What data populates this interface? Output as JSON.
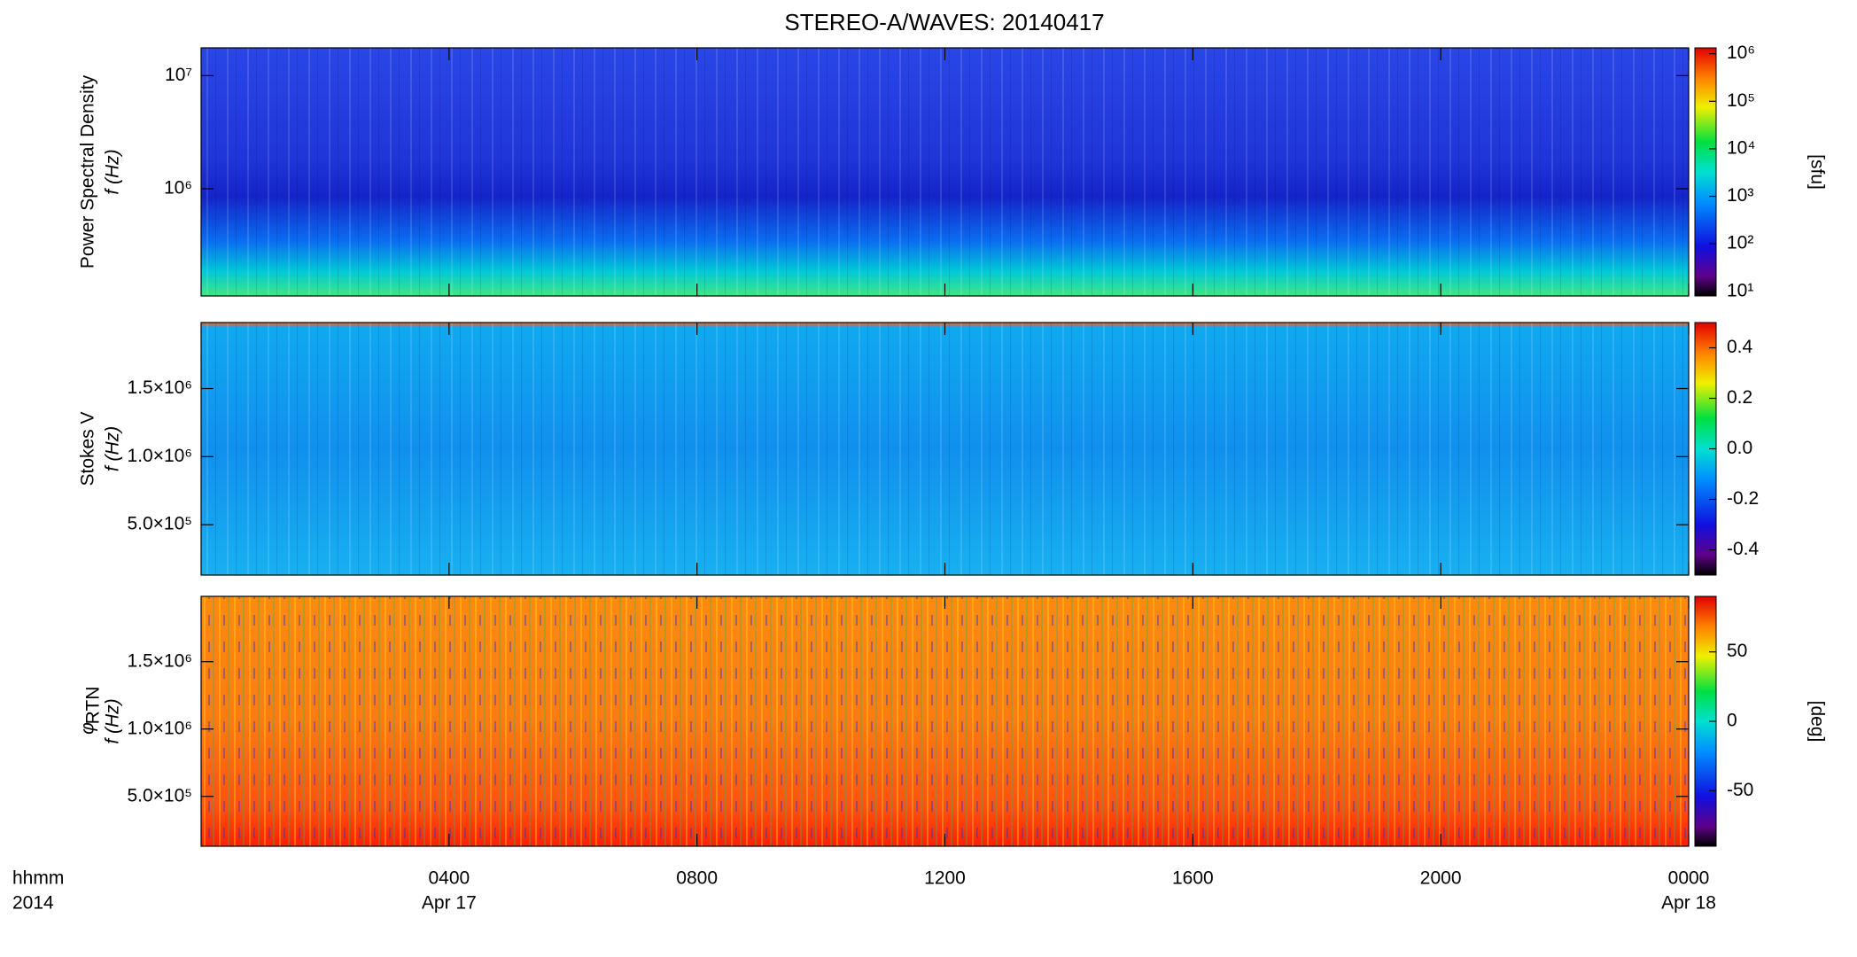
{
  "chart_data": {
    "type": "spectrogram-stack",
    "title": "STEREO-A/WAVES: 20140417",
    "xlabel": [
      "hhmm",
      "2014"
    ],
    "xlim": [
      0,
      24
    ],
    "xticks": [
      {
        "value": 4,
        "label": "0400"
      },
      {
        "value": 8,
        "label": "0800"
      },
      {
        "value": 12,
        "label": "1200"
      },
      {
        "value": 16,
        "label": "1600"
      },
      {
        "value": 20,
        "label": "2000"
      },
      {
        "value": 24,
        "label": "0000"
      }
    ],
    "xtick_sublabels": [
      "Apr 17",
      null,
      null,
      null,
      null,
      "Apr 18"
    ],
    "panels": [
      {
        "ylabel": [
          "Power Spectral Density",
          "f (Hz)"
        ],
        "ylog": true,
        "ylim": [
          113000,
          17600000
        ],
        "yticks": [
          {
            "value": 1000000,
            "label": "10⁶"
          },
          {
            "value": 10000000,
            "label": "10⁷"
          }
        ],
        "clog": true,
        "clim": [
          8,
          1330000
        ],
        "cticks": [
          {
            "value": 10,
            "label": "10¹"
          },
          {
            "value": 100,
            "label": "10²"
          },
          {
            "value": 1000,
            "label": "10³"
          },
          {
            "value": 10000,
            "label": "10⁴"
          },
          {
            "value": 100000,
            "label": "10⁵"
          },
          {
            "value": 1000000,
            "label": "10⁶"
          }
        ],
        "clabel": "[sfu]"
      },
      {
        "ylabel": [
          "Stokes V",
          "f (Hz)"
        ],
        "ylog": false,
        "ylim": [
          130000,
          1985000
        ],
        "yticks": [
          {
            "value": 500000,
            "label": "5.0×10⁵"
          },
          {
            "value": 1000000,
            "label": "1.0×10⁶"
          },
          {
            "value": 1500000,
            "label": "1.5×10⁶"
          }
        ],
        "clog": false,
        "clim": [
          -0.5,
          0.5
        ],
        "cticks": [
          -0.4,
          -0.2,
          {
            "value": 0,
            "label": "0.0"
          },
          0.2,
          0.4
        ]
      },
      {
        "ylabel": [
          "φ",
          "RTN",
          "f (Hz)"
        ],
        "ylog": false,
        "ylim": [
          130000,
          1985000
        ],
        "yticks": [
          {
            "value": 500000,
            "label": "5.0×10⁵"
          },
          {
            "value": 1000000,
            "label": "1.0×10⁶"
          },
          {
            "value": 1500000,
            "label": "1.5×10⁶"
          }
        ],
        "clog": false,
        "clim": [
          -90,
          90
        ],
        "cticks": [
          -50,
          0,
          50
        ],
        "clabel": "[deg]"
      }
    ]
  }
}
